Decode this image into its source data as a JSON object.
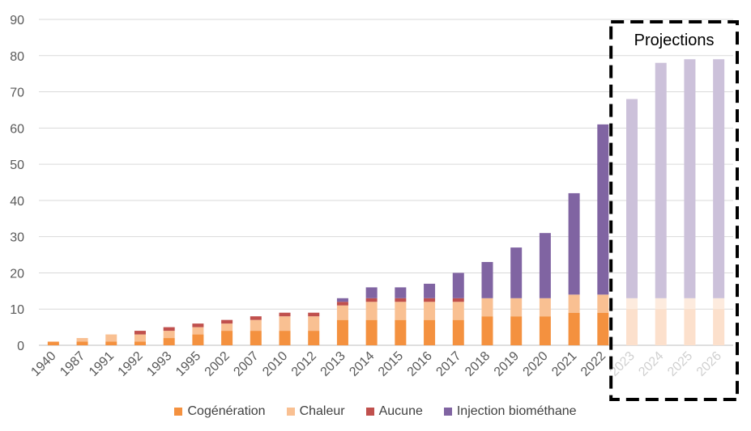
{
  "chart_data": {
    "type": "bar",
    "stacked": true,
    "categories": [
      "1940",
      "1987",
      "1991",
      "1992",
      "1993",
      "1995",
      "2002",
      "2007",
      "2010",
      "2012",
      "2013",
      "2014",
      "2015",
      "2016",
      "2017",
      "2018",
      "2019",
      "2020",
      "2021",
      "2022",
      "2023",
      "2024",
      "2025",
      "2026"
    ],
    "series": [
      {
        "name": "Cogénération",
        "color": "#F4913F",
        "values": [
          1,
          1,
          1,
          1,
          2,
          3,
          4,
          4,
          4,
          4,
          7,
          7,
          7,
          7,
          7,
          8,
          8,
          8,
          9,
          9,
          10,
          10,
          10,
          10
        ]
      },
      {
        "name": "Chaleur",
        "color": "#F9C092",
        "values": [
          0,
          1,
          2,
          2,
          2,
          2,
          2,
          3,
          4,
          4,
          4,
          5,
          5,
          5,
          5,
          5,
          5,
          5,
          5,
          5,
          3,
          3,
          3,
          3
        ]
      },
      {
        "name": "Aucune",
        "color": "#C0504D",
        "values": [
          0,
          0,
          0,
          1,
          1,
          1,
          1,
          1,
          1,
          1,
          1,
          1,
          1,
          1,
          1,
          0,
          0,
          0,
          0,
          0,
          0,
          0,
          0,
          0
        ]
      },
      {
        "name": "Injection biométhane",
        "color": "#8064A2",
        "values": [
          0,
          0,
          0,
          0,
          0,
          0,
          0,
          0,
          0,
          0,
          1,
          3,
          3,
          4,
          7,
          10,
          14,
          18,
          28,
          47,
          55,
          65,
          66,
          66
        ]
      }
    ],
    "projected_from_index": 20,
    "projected_colors": {
      "Cogénération": "#FCE0CC",
      "Chaleur": "#FDEBDE",
      "Aucune": "#EBC9C8",
      "Injection biométhane": "#CCC1DA"
    },
    "ylim": [
      0,
      90
    ],
    "yticks": [
      0,
      10,
      20,
      30,
      40,
      50,
      60,
      70,
      80,
      90
    ],
    "annotation": "Projections",
    "legend_position": "bottom",
    "grid": true,
    "xlabel": "",
    "ylabel": ""
  }
}
